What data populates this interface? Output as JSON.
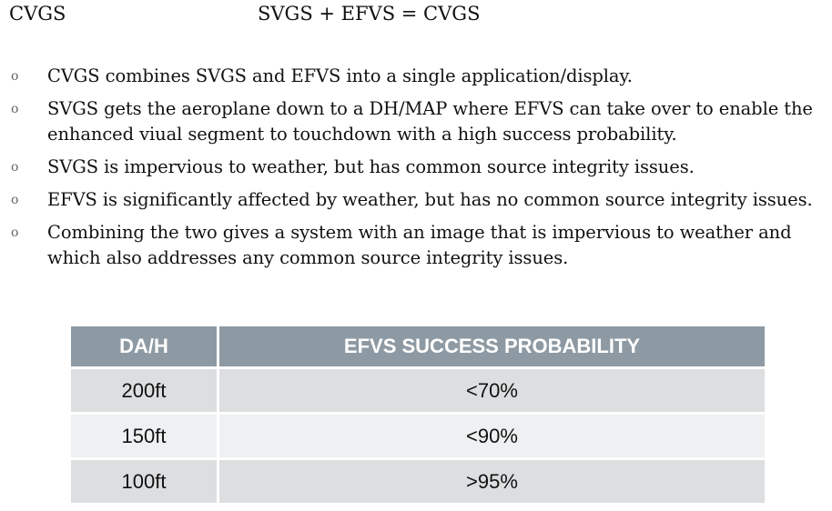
{
  "header": {
    "title": "CVGS",
    "equation": "SVGS + EFVS = CVGS"
  },
  "bullets": {
    "marker": "o",
    "items": [
      "CVGS combines SVGS and EFVS into a single application/display.",
      "SVGS gets the aeroplane down to a DH/MAP where EFVS can take over to enable the enhanced viual segment to touchdown with a high success probability.",
      "SVGS is impervious to weather, but has common source integrity issues.",
      "EFVS is significantly affected by weather, but has no common source integrity issues.",
      "Combining the two gives a system with an image that is impervious to weather and which also addresses any common source integrity issues."
    ]
  },
  "table": {
    "headers": [
      "DA/H",
      "EFVS SUCCESS PROBABILITY"
    ],
    "rows": [
      [
        "200ft",
        "<70%"
      ],
      [
        "150ft",
        "<90%"
      ],
      [
        "100ft",
        ">95%"
      ]
    ]
  }
}
